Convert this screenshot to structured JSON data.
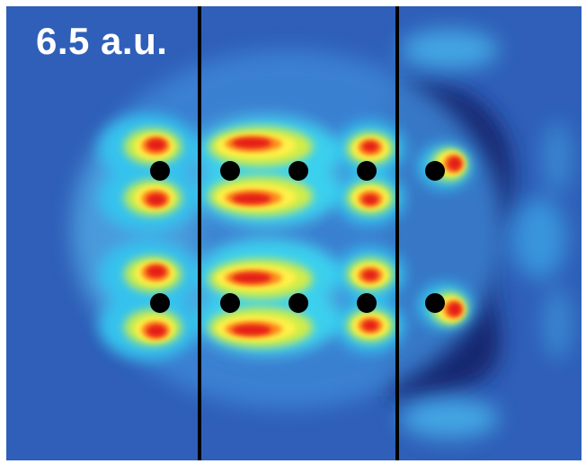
{
  "label": "6.5 a.u.",
  "colors": {
    "background": "#2f5fb8",
    "deep": "#152a78",
    "cyan": "#33c6ee",
    "yellow": "#fff14a",
    "orange": "#ff8a1c",
    "red": "#e41e14",
    "atom": "#000000",
    "divider": "#000000"
  }
}
